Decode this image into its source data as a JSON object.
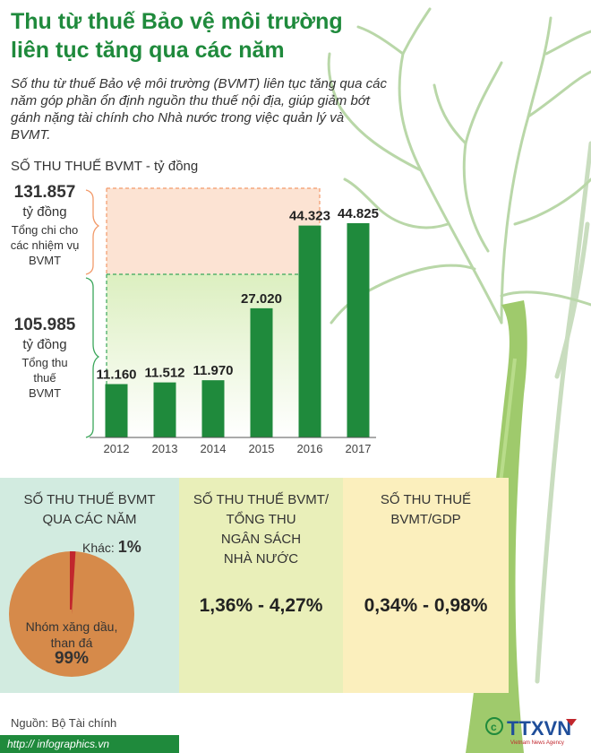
{
  "title_line1": "Thu từ thuế Bảo vệ môi trường",
  "title_line2": "liên tục tăng qua các năm",
  "intro": "Số thu từ thuế Bảo vệ môi trường (BVMT) liên tục tăng qua các năm góp phần ổn định nguồn thu thuế nội địa, giúp giảm bớt gánh nặng tài chính cho Nhà nước trong việc quản lý và BVMT.",
  "chart_heading": "SỐ THU THUẾ BVMT - tỷ đồng",
  "annotation_spend": {
    "value": "131.857",
    "unit": "tỷ đồng",
    "label_1": "Tổng chi cho",
    "label_2": "các nhiệm vụ",
    "label_3": "BVMT"
  },
  "annotation_revenue": {
    "value": "105.985",
    "unit": "tỷ đồng",
    "label_1": "Tổng thu",
    "label_2": "thuế",
    "label_3": "BVMT"
  },
  "chart_data": {
    "type": "bar",
    "title": "SỐ THU THUẾ BVMT - tỷ đồng",
    "categories": [
      "2012",
      "2013",
      "2014",
      "2015",
      "2016",
      "2017"
    ],
    "values": [
      11160,
      11512,
      11970,
      27020,
      44323,
      44825
    ],
    "value_labels": [
      "11.160",
      "11.512",
      "11.970",
      "27.020",
      "44.323",
      "44.825"
    ],
    "ylim": [
      0,
      60000
    ],
    "reference_totals": [
      131857,
      105985
    ],
    "bar_color": "#1f8a3c"
  },
  "panel_1": {
    "title_line1": "SỐ THU THUẾ BVMT",
    "title_line2": "QUA CÁC NĂM",
    "pie": {
      "type": "pie",
      "slices": [
        {
          "label_1": "Khác:",
          "value_label": "1%",
          "value": 1,
          "color": "#c1272d"
        },
        {
          "label_1": "Nhóm xăng dầu,",
          "label_2": "than đá",
          "value_label": "99%",
          "value": 99,
          "color": "#d68a4a"
        }
      ]
    }
  },
  "panel_2": {
    "title_line1": "SỐ THU THUẾ BVMT/",
    "title_line2": "TỔNG THU",
    "title_line3": "NGÂN SÁCH",
    "title_line4": "NHÀ NƯỚC",
    "value": "1,36% - 4,27%"
  },
  "panel_3": {
    "title_line1": "SỐ THU THUẾ",
    "title_line2": "BVMT/GDP",
    "value": "0,34% - 0,98%"
  },
  "source": "Nguồn: Bộ Tài chính",
  "website": "http:// infographics.vn",
  "logo_text": "TTXVN",
  "logo_sub": "Vietnam News Agency",
  "colors": {
    "title": "#1f8a3c",
    "bar": "#1f8a3c",
    "spend_band": "#fbe0cf",
    "spend_dash": "#f29a6a",
    "revenue_dash": "#3aa65a",
    "tree_trunk": "#9cc868",
    "tree_branch": "#c6dcb8"
  }
}
